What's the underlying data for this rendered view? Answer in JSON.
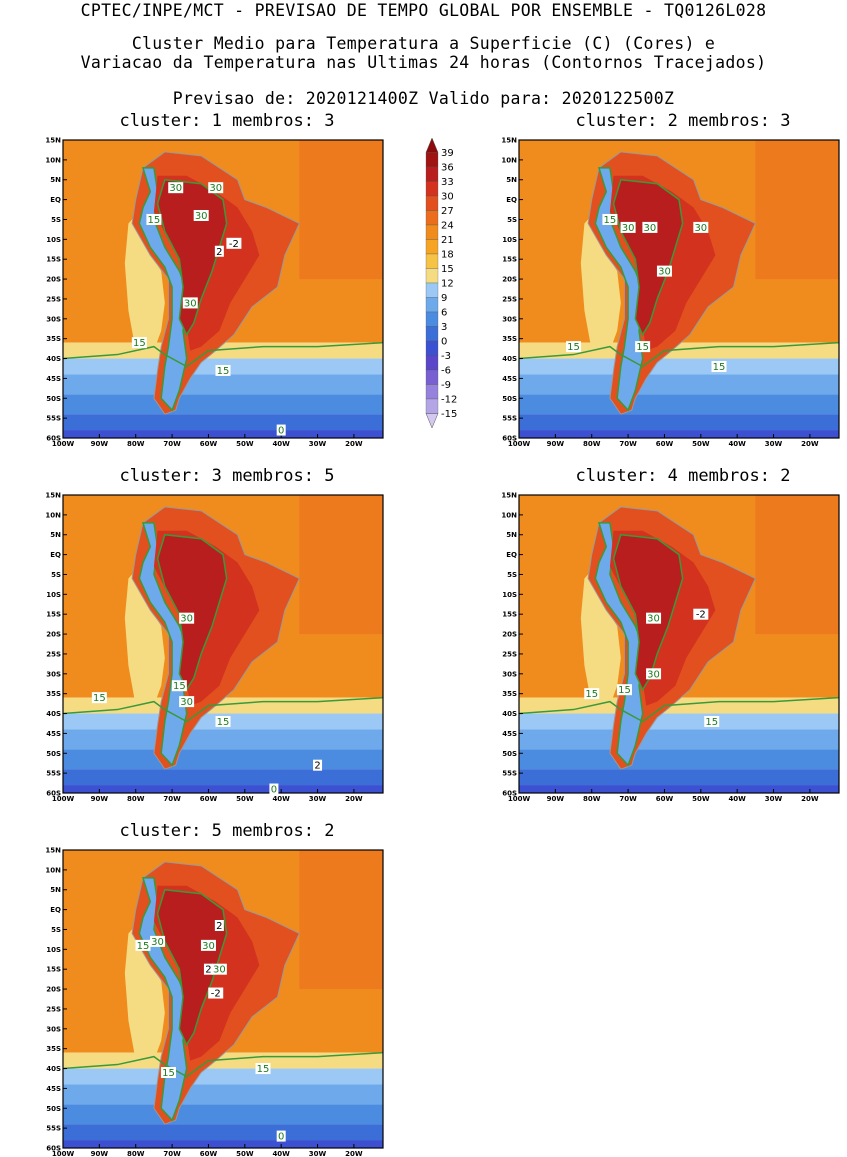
{
  "header": {
    "line1": "CPTEC/INPE/MCT - PREVISAO DE TEMPO GLOBAL POR ENSEMBLE - TQ0126L028",
    "line2": "Cluster Medio para Temperatura a Superficie (C) (Cores) e",
    "line3": "Variacao da Temperatura nas Ultimas 24 horas (Contornos Tracejados)",
    "line4": "Previsao de: 2020121400Z   Valido para: 2020122500Z"
  },
  "map_axes": {
    "lat_ticks": [
      "15N",
      "10N",
      "5N",
      "EQ",
      "5S",
      "10S",
      "15S",
      "20S",
      "25S",
      "30S",
      "35S",
      "40S",
      "45S",
      "50S",
      "55S",
      "60S"
    ],
    "lon_ticks": [
      "100W",
      "90W",
      "80W",
      "70W",
      "60W",
      "50W",
      "40W",
      "30W",
      "20W"
    ]
  },
  "colors": {
    "scale": [
      "#d2c8f0",
      "#b4a5e6",
      "#9682dc",
      "#7860d2",
      "#5a46c8",
      "#3c50d2",
      "#3c6ed7",
      "#4b8ce1",
      "#6eaaeb",
      "#9bc8f5",
      "#f5dc82",
      "#f5c346",
      "#f5a523",
      "#f08c1e",
      "#eb6e1e",
      "#e1501e",
      "#d2321e",
      "#b91e1e",
      "#a01414",
      "#8c0a0a"
    ],
    "land_outline": "#9a9a9a",
    "contour_15_30": "#3a9a3a"
  },
  "colorbar": {
    "labels": [
      "39",
      "36",
      "33",
      "30",
      "27",
      "24",
      "21",
      "18",
      "15",
      "12",
      "9",
      "6",
      "3",
      "0",
      "-3",
      "-6",
      "-9",
      "-12",
      "-15"
    ]
  },
  "panels": [
    {
      "title": "cluster: 1   membros: 3",
      "labels": [
        "30",
        "30",
        "30",
        "15",
        "-2",
        "2",
        "30",
        "15",
        "15",
        "0"
      ]
    },
    {
      "title": "cluster: 2   membros: 3",
      "labels": [
        "15",
        "30",
        "30",
        "30",
        "30",
        "15",
        "15",
        "15"
      ]
    },
    {
      "title": "cluster: 3   membros: 5",
      "labels": [
        "30",
        "15",
        "30",
        "15",
        "15",
        "2",
        "0"
      ]
    },
    {
      "title": "cluster: 4   membros: 2",
      "labels": [
        "-2",
        "30",
        "30",
        "15",
        "15",
        "15"
      ]
    },
    {
      "title": "cluster: 5   membros: 2",
      "labels": [
        "2",
        "30",
        "15",
        "30",
        "30",
        "2",
        "-2",
        "15",
        "15",
        "0"
      ]
    }
  ]
}
